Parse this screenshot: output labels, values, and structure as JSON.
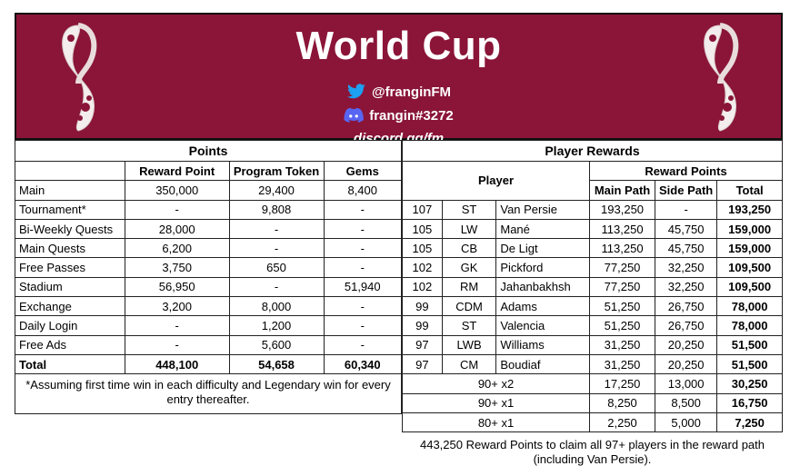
{
  "banner": {
    "title": "World Cup",
    "twitter": "@franginFM",
    "discord": "frangin#3272",
    "link": "discord.gg/fm"
  },
  "colors": {
    "banner_bg": "#8a1538",
    "twitter": "#1da1f2",
    "discord": "#5865f2"
  },
  "points": {
    "title": "Points",
    "headers": [
      "Reward Point",
      "Program Token",
      "Gems"
    ],
    "rows": [
      {
        "label": "Main",
        "rp": "350,000",
        "pt": "29,400",
        "gems": "8,400"
      },
      {
        "label": "Tournament*",
        "rp": "-",
        "pt": "9,808",
        "gems": "-"
      },
      {
        "label": "Bi-Weekly Quests",
        "rp": "28,000",
        "pt": "-",
        "gems": "-"
      },
      {
        "label": "Main Quests",
        "rp": "6,200",
        "pt": "-",
        "gems": "-"
      },
      {
        "label": "Free Passes",
        "rp": "3,750",
        "pt": "650",
        "gems": "-"
      },
      {
        "label": "Stadium",
        "rp": "56,950",
        "pt": "-",
        "gems": "51,940"
      },
      {
        "label": "Exchange",
        "rp": "3,200",
        "pt": "8,000",
        "gems": "-"
      },
      {
        "label": "Daily Login",
        "rp": "-",
        "pt": "1,200",
        "gems": "-"
      },
      {
        "label": "Free Ads",
        "rp": "-",
        "pt": "5,600",
        "gems": "-"
      }
    ],
    "total": {
      "label": "Total",
      "rp": "448,100",
      "pt": "54,658",
      "gems": "60,340"
    },
    "note": "*Assuming first time win in each difficulty and Legendary win for every entry thereafter."
  },
  "rewards": {
    "title": "Player Rewards",
    "player_header": "Player",
    "rp_header": "Reward Points",
    "col_main": "Main Path",
    "col_side": "Side Path",
    "col_total": "Total",
    "players": [
      {
        "ovr": "107",
        "pos": "ST",
        "name": "Van Persie",
        "main": "193,250",
        "side": "-",
        "total": "193,250"
      },
      {
        "ovr": "105",
        "pos": "LW",
        "name": "Mané",
        "main": "113,250",
        "side": "45,750",
        "total": "159,000"
      },
      {
        "ovr": "105",
        "pos": "CB",
        "name": "De Ligt",
        "main": "113,250",
        "side": "45,750",
        "total": "159,000"
      },
      {
        "ovr": "102",
        "pos": "GK",
        "name": "Pickford",
        "main": "77,250",
        "side": "32,250",
        "total": "109,500"
      },
      {
        "ovr": "102",
        "pos": "RM",
        "name": "Jahanbakhsh",
        "main": "77,250",
        "side": "32,250",
        "total": "109,500"
      },
      {
        "ovr": "99",
        "pos": "CDM",
        "name": "Adams",
        "main": "51,250",
        "side": "26,750",
        "total": "78,000"
      },
      {
        "ovr": "99",
        "pos": "ST",
        "name": "Valencia",
        "main": "51,250",
        "side": "26,750",
        "total": "78,000"
      },
      {
        "ovr": "97",
        "pos": "LWB",
        "name": "Williams",
        "main": "31,250",
        "side": "20,250",
        "total": "51,500"
      },
      {
        "ovr": "97",
        "pos": "CM",
        "name": "Boudiaf",
        "main": "31,250",
        "side": "20,250",
        "total": "51,500"
      }
    ],
    "packs": [
      {
        "label": "90+ x2",
        "main": "17,250",
        "side": "13,000",
        "total": "30,250"
      },
      {
        "label": "90+ x1",
        "main": "8,250",
        "side": "8,500",
        "total": "16,750"
      },
      {
        "label": "80+ x1",
        "main": "2,250",
        "side": "5,000",
        "total": "7,250"
      }
    ],
    "footnote": "443,250 Reward Points to claim all 97+ players in the reward path (including Van Persie)."
  }
}
